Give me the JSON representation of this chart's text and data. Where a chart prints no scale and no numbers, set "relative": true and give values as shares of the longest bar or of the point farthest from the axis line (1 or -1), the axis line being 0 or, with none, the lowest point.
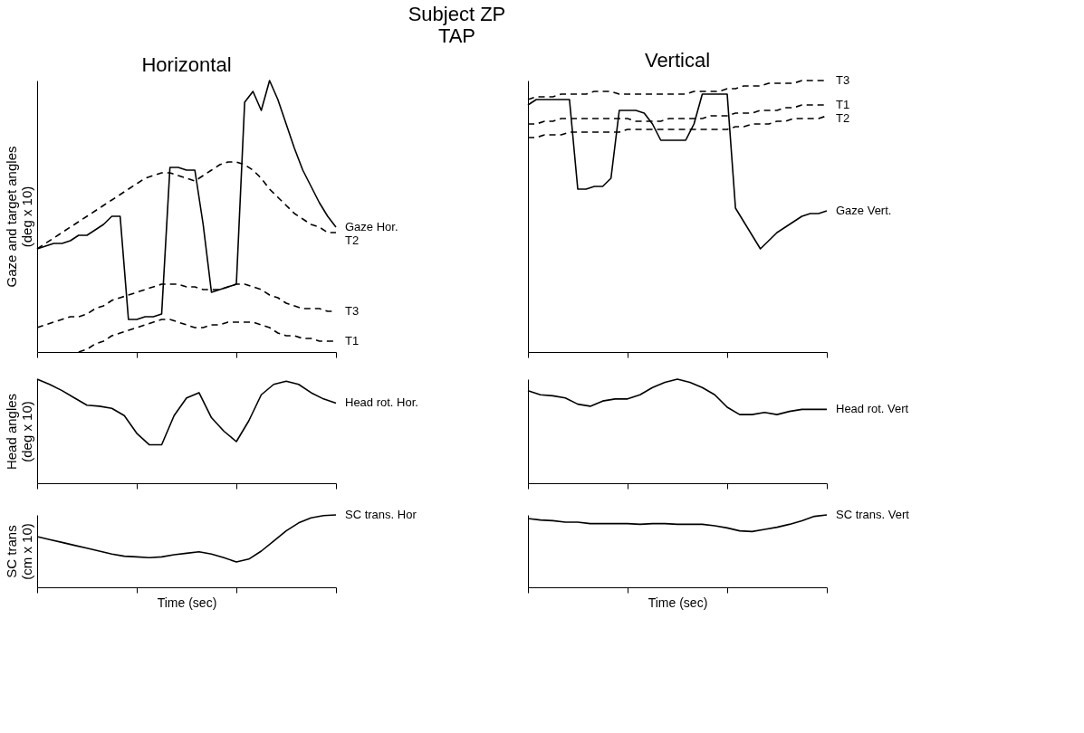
{
  "chart_data": [
    {
      "type": "line",
      "relative": true,
      "title": "Horizontal",
      "ylabel": "Gaze and target angles\n(deg x 10)",
      "annotations": [
        "Subject ZP",
        "TAP"
      ],
      "categories": [
        null,
        null,
        null,
        null,
        null,
        null,
        null,
        null,
        null,
        null,
        null,
        null,
        null,
        null,
        null,
        null,
        null,
        null,
        null,
        null,
        null,
        null,
        null,
        null,
        null,
        null,
        null,
        null,
        null,
        null,
        null,
        null,
        null,
        null,
        null,
        null,
        null
      ],
      "series": [
        {
          "name": "Gaze Hor.",
          "color": "#000000",
          "line_style": "solid",
          "values": [
            0.38,
            0.39,
            0.4,
            0.4,
            0.41,
            0.43,
            0.43,
            0.45,
            0.47,
            0.5,
            0.5,
            0.12,
            0.12,
            0.13,
            0.13,
            0.14,
            0.68,
            0.68,
            0.67,
            0.67,
            0.47,
            0.22,
            0.23,
            0.24,
            0.25,
            0.92,
            0.96,
            0.89,
            1.0,
            0.93,
            0.84,
            0.75,
            0.67,
            0.61,
            0.55,
            0.5,
            0.46
          ]
        },
        {
          "name": "T2",
          "color": "#000000",
          "line_style": "dashed",
          "values": [
            0.38,
            0.4,
            0.42,
            0.44,
            0.46,
            0.48,
            0.5,
            0.52,
            0.54,
            0.56,
            0.58,
            0.6,
            0.62,
            0.64,
            0.65,
            0.66,
            0.66,
            0.65,
            0.64,
            0.63,
            0.65,
            0.67,
            0.69,
            0.7,
            0.7,
            0.69,
            0.67,
            0.64,
            0.6,
            0.57,
            0.54,
            0.51,
            0.49,
            0.47,
            0.46,
            0.44,
            0.44
          ]
        },
        {
          "name": "T3",
          "color": "#000000",
          "line_style": "dashed",
          "values": [
            0.09,
            0.1,
            0.11,
            0.12,
            0.13,
            0.13,
            0.14,
            0.16,
            0.17,
            0.19,
            0.2,
            0.21,
            0.22,
            0.23,
            0.24,
            0.25,
            0.25,
            0.25,
            0.24,
            0.24,
            0.23,
            0.23,
            0.23,
            0.24,
            0.25,
            0.25,
            0.24,
            0.23,
            0.21,
            0.2,
            0.18,
            0.17,
            0.16,
            0.16,
            0.16,
            0.15,
            0.15
          ]
        },
        {
          "name": "T1",
          "color": "#000000",
          "line_style": "dashed",
          "values": [
            null,
            null,
            null,
            null,
            null,
            0.0,
            0.01,
            0.03,
            0.04,
            0.06,
            0.07,
            0.08,
            0.09,
            0.1,
            0.11,
            0.12,
            0.12,
            0.11,
            0.1,
            0.09,
            0.09,
            0.1,
            0.1,
            0.11,
            0.11,
            0.11,
            0.11,
            0.1,
            0.09,
            0.07,
            0.06,
            0.06,
            0.05,
            0.05,
            0.04,
            0.04,
            0.04
          ]
        }
      ]
    },
    {
      "type": "line",
      "relative": true,
      "title": "Vertical",
      "categories": [
        null,
        null,
        null,
        null,
        null,
        null,
        null,
        null,
        null,
        null,
        null,
        null,
        null,
        null,
        null,
        null,
        null,
        null,
        null,
        null,
        null,
        null,
        null,
        null,
        null,
        null,
        null,
        null,
        null,
        null,
        null,
        null,
        null,
        null,
        null,
        null,
        null
      ],
      "series": [
        {
          "name": "T3",
          "color": "#000000",
          "line_style": "dashed",
          "values": [
            0.93,
            0.94,
            0.94,
            0.94,
            0.95,
            0.95,
            0.95,
            0.95,
            0.96,
            0.96,
            0.96,
            0.95,
            0.95,
            0.95,
            0.95,
            0.95,
            0.95,
            0.95,
            0.95,
            0.95,
            0.96,
            0.96,
            0.96,
            0.96,
            0.97,
            0.97,
            0.98,
            0.98,
            0.98,
            0.99,
            0.99,
            0.99,
            0.99,
            1.0,
            1.0,
            1.0,
            1.0
          ]
        },
        {
          "name": "T1",
          "color": "#000000",
          "line_style": "dashed",
          "values": [
            0.84,
            0.84,
            0.85,
            0.85,
            0.86,
            0.86,
            0.86,
            0.86,
            0.86,
            0.86,
            0.86,
            0.86,
            0.86,
            0.85,
            0.85,
            0.85,
            0.85,
            0.86,
            0.86,
            0.86,
            0.86,
            0.86,
            0.87,
            0.87,
            0.87,
            0.88,
            0.88,
            0.88,
            0.89,
            0.89,
            0.89,
            0.9,
            0.9,
            0.91,
            0.91,
            0.91,
            0.91
          ]
        },
        {
          "name": "T2",
          "color": "#000000",
          "line_style": "dashed",
          "values": [
            0.79,
            0.79,
            0.8,
            0.8,
            0.8,
            0.81,
            0.81,
            0.81,
            0.81,
            0.81,
            0.81,
            0.81,
            0.82,
            0.82,
            0.82,
            0.82,
            0.82,
            0.82,
            0.82,
            0.82,
            0.82,
            0.82,
            0.82,
            0.82,
            0.82,
            0.83,
            0.83,
            0.84,
            0.84,
            0.84,
            0.85,
            0.85,
            0.86,
            0.86,
            0.86,
            0.86,
            0.87
          ]
        },
        {
          "name": "Gaze Vert.",
          "color": "#000000",
          "line_style": "solid",
          "values": [
            0.91,
            0.93,
            0.93,
            0.93,
            0.93,
            0.93,
            0.6,
            0.6,
            0.61,
            0.61,
            0.64,
            0.89,
            0.89,
            0.89,
            0.88,
            0.84,
            0.78,
            0.78,
            0.78,
            0.78,
            0.84,
            0.95,
            0.95,
            0.95,
            0.95,
            0.53,
            0.48,
            0.43,
            0.38,
            0.41,
            0.44,
            0.46,
            0.48,
            0.5,
            0.51,
            0.51,
            0.52
          ]
        }
      ]
    },
    {
      "type": "line",
      "relative": true,
      "ylabel": "Head angles\n(deg x 10)",
      "categories": [
        null,
        null,
        null,
        null,
        null,
        null,
        null,
        null,
        null,
        null,
        null,
        null,
        null,
        null,
        null,
        null,
        null,
        null,
        null,
        null,
        null,
        null,
        null,
        null,
        null
      ],
      "series": [
        {
          "name": "Head rot. Hor.",
          "color": "#000000",
          "line_style": "solid",
          "values": [
            1.0,
            0.95,
            0.89,
            0.82,
            0.75,
            0.74,
            0.72,
            0.65,
            0.48,
            0.37,
            0.37,
            0.65,
            0.82,
            0.87,
            0.63,
            0.5,
            0.4,
            0.6,
            0.85,
            0.95,
            0.98,
            0.95,
            0.87,
            0.81,
            0.77
          ]
        }
      ]
    },
    {
      "type": "line",
      "relative": true,
      "categories": [
        null,
        null,
        null,
        null,
        null,
        null,
        null,
        null,
        null,
        null,
        null,
        null,
        null,
        null,
        null,
        null,
        null,
        null,
        null,
        null,
        null,
        null,
        null,
        null,
        null
      ],
      "series": [
        {
          "name": "Head rot. Vert",
          "color": "#000000",
          "line_style": "solid",
          "values": [
            0.89,
            0.85,
            0.84,
            0.82,
            0.76,
            0.74,
            0.79,
            0.81,
            0.81,
            0.85,
            0.92,
            0.97,
            1.0,
            0.97,
            0.92,
            0.85,
            0.73,
            0.66,
            0.66,
            0.68,
            0.66,
            0.69,
            0.71,
            0.71,
            0.71
          ]
        }
      ]
    },
    {
      "type": "line",
      "relative": true,
      "ylabel": "SC trans\n(cm x 10)",
      "xlabel": "Time (sec)",
      "categories": [
        null,
        null,
        null,
        null,
        null,
        null,
        null,
        null,
        null,
        null,
        null,
        null,
        null,
        null,
        null,
        null,
        null,
        null,
        null,
        null,
        null,
        null,
        null,
        null,
        null
      ],
      "series": [
        {
          "name": "SC trans. Hor",
          "color": "#000000",
          "line_style": "solid",
          "values": [
            0.7,
            0.66,
            0.62,
            0.58,
            0.54,
            0.5,
            0.46,
            0.43,
            0.42,
            0.41,
            0.42,
            0.45,
            0.47,
            0.49,
            0.46,
            0.41,
            0.35,
            0.39,
            0.5,
            0.64,
            0.78,
            0.89,
            0.96,
            0.99,
            1.0
          ]
        }
      ]
    },
    {
      "type": "line",
      "relative": true,
      "xlabel": "Time (sec)",
      "categories": [
        null,
        null,
        null,
        null,
        null,
        null,
        null,
        null,
        null,
        null,
        null,
        null,
        null,
        null,
        null,
        null,
        null,
        null,
        null,
        null,
        null,
        null,
        null,
        null,
        null
      ],
      "series": [
        {
          "name": "SC trans. Vert",
          "color": "#000000",
          "line_style": "solid",
          "values": [
            0.95,
            0.93,
            0.92,
            0.9,
            0.9,
            0.88,
            0.88,
            0.88,
            0.88,
            0.87,
            0.88,
            0.88,
            0.87,
            0.87,
            0.87,
            0.85,
            0.82,
            0.78,
            0.77,
            0.8,
            0.83,
            0.87,
            0.92,
            0.98,
            1.0
          ]
        }
      ]
    }
  ]
}
